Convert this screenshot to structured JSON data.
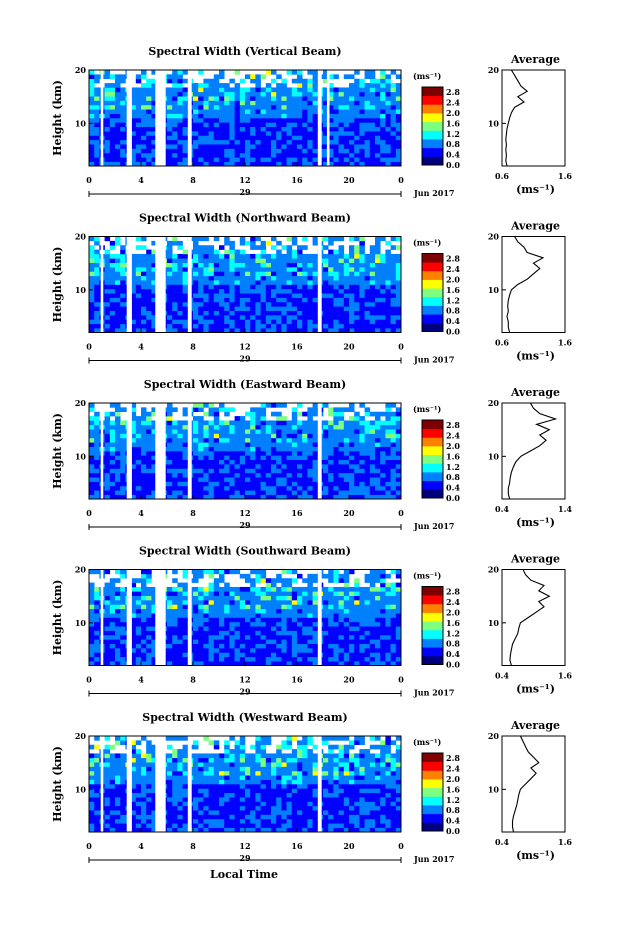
{
  "figure": {
    "xaxis_label": "Local Time",
    "date_label": "Jun 2017",
    "colorbar_unit": "(ms⁻¹)",
    "colorbar_ticks": [
      "0.0",
      "0.4",
      "0.8",
      "1.2",
      "1.6",
      "2.0",
      "2.4",
      "2.8"
    ],
    "colormap": [
      "#00007f",
      "#0000ff",
      "#007fff",
      "#00ffff",
      "#7fff7f",
      "#ffff00",
      "#ff7f00",
      "#ff0000",
      "#7f0000"
    ]
  },
  "chart_data": [
    {
      "type": "heatmap",
      "title": "Spectral Width (Vertical Beam)",
      "ylabel": "Height (km)",
      "xlabel": "Local Time",
      "x_ticks": [
        "0",
        "4",
        "8",
        "12",
        "16",
        "20",
        "0"
      ],
      "day_label": "29",
      "y_ticks": [
        "20",
        "10"
      ],
      "xlim": [
        0,
        24
      ],
      "ylim": [
        2,
        20
      ],
      "data_gaps_hours": [
        [
          0.9,
          1.1
        ],
        [
          2.9,
          3.3
        ],
        [
          5.1,
          5.9
        ],
        [
          7.6,
          7.9
        ],
        [
          17.6,
          17.9
        ],
        [
          18.3,
          18.5
        ]
      ],
      "colorbar": {
        "min": 0.0,
        "max": 3.0,
        "ticks": [
          0.0,
          0.4,
          0.8,
          1.2,
          1.6,
          2.0,
          2.4,
          2.8
        ],
        "unit": "(ms⁻¹)"
      },
      "average_profile": {
        "title": "Average",
        "xlabel": "(ms⁻¹)",
        "x_ticks": [
          "0.6",
          "1.6"
        ],
        "xlim": [
          0.6,
          1.6
        ],
        "y_ticks": [
          "20",
          "10"
        ],
        "ylim": [
          2,
          20
        ],
        "points": [
          [
            0.68,
            2
          ],
          [
            0.66,
            3
          ],
          [
            0.67,
            4
          ],
          [
            0.66,
            5
          ],
          [
            0.67,
            6
          ],
          [
            0.66,
            7
          ],
          [
            0.67,
            8
          ],
          [
            0.68,
            9
          ],
          [
            0.7,
            10
          ],
          [
            0.72,
            11
          ],
          [
            0.75,
            12
          ],
          [
            0.8,
            13
          ],
          [
            0.95,
            14
          ],
          [
            0.85,
            15
          ],
          [
            1.0,
            16
          ],
          [
            0.9,
            17
          ],
          [
            0.85,
            18
          ],
          [
            0.8,
            19
          ],
          [
            0.75,
            20
          ]
        ]
      }
    },
    {
      "type": "heatmap",
      "title": "Spectral Width (Northward Beam)",
      "ylabel": "Height (km)",
      "xlabel": "Local Time",
      "x_ticks": [
        "0",
        "4",
        "8",
        "12",
        "16",
        "20",
        "0"
      ],
      "day_label": "29",
      "y_ticks": [
        "20",
        "10"
      ],
      "xlim": [
        0,
        24
      ],
      "ylim": [
        2,
        20
      ],
      "data_gaps_hours": [
        [
          0.9,
          1.1
        ],
        [
          2.9,
          3.3
        ],
        [
          5.1,
          5.9
        ],
        [
          7.6,
          7.9
        ],
        [
          17.6,
          17.9
        ]
      ],
      "colorbar": {
        "min": 0.0,
        "max": 3.0,
        "ticks": [
          0.0,
          0.4,
          0.8,
          1.2,
          1.6,
          2.0,
          2.4,
          2.8
        ],
        "unit": "(ms⁻¹)"
      },
      "average_profile": {
        "title": "Average",
        "xlabel": "(ms⁻¹)",
        "x_ticks": [
          "0.6",
          "1.6"
        ],
        "xlim": [
          0.6,
          1.6
        ],
        "y_ticks": [
          "20",
          "10"
        ],
        "ylim": [
          2,
          20
        ],
        "points": [
          [
            0.72,
            2
          ],
          [
            0.7,
            3
          ],
          [
            0.7,
            4
          ],
          [
            0.68,
            5
          ],
          [
            0.7,
            6
          ],
          [
            0.69,
            7
          ],
          [
            0.7,
            8
          ],
          [
            0.72,
            9
          ],
          [
            0.75,
            10
          ],
          [
            0.85,
            11
          ],
          [
            1.0,
            12
          ],
          [
            1.1,
            13
          ],
          [
            1.2,
            14
          ],
          [
            1.1,
            15
          ],
          [
            1.25,
            16
          ],
          [
            1.0,
            17
          ],
          [
            0.95,
            18
          ],
          [
            0.85,
            19
          ],
          [
            0.8,
            20
          ]
        ]
      }
    },
    {
      "type": "heatmap",
      "title": "Spectral Width (Eastward Beam)",
      "ylabel": "Height (km)",
      "xlabel": "Local Time",
      "x_ticks": [
        "0",
        "4",
        "8",
        "12",
        "16",
        "20",
        "0"
      ],
      "day_label": "29",
      "y_ticks": [
        "20",
        "10"
      ],
      "xlim": [
        0,
        24
      ],
      "ylim": [
        2,
        20
      ],
      "data_gaps_hours": [
        [
          0.9,
          1.1
        ],
        [
          2.9,
          3.3
        ],
        [
          5.1,
          5.9
        ],
        [
          7.6,
          7.9
        ],
        [
          17.6,
          17.9
        ]
      ],
      "colorbar": {
        "min": 0.0,
        "max": 3.0,
        "ticks": [
          0.0,
          0.4,
          0.8,
          1.2,
          1.6,
          2.0,
          2.4,
          2.8
        ],
        "unit": "(ms⁻¹)"
      },
      "average_profile": {
        "title": "Average",
        "xlabel": "(ms⁻¹)",
        "x_ticks": [
          "0.4",
          "1.4"
        ],
        "xlim": [
          0.4,
          1.4
        ],
        "y_ticks": [
          "20",
          "10"
        ],
        "ylim": [
          2,
          20
        ],
        "points": [
          [
            0.52,
            2
          ],
          [
            0.5,
            3
          ],
          [
            0.5,
            4
          ],
          [
            0.52,
            5
          ],
          [
            0.53,
            6
          ],
          [
            0.55,
            7
          ],
          [
            0.58,
            8
          ],
          [
            0.62,
            9
          ],
          [
            0.7,
            10
          ],
          [
            0.85,
            11
          ],
          [
            1.0,
            12
          ],
          [
            1.1,
            13
          ],
          [
            1.0,
            14
          ],
          [
            1.15,
            15
          ],
          [
            0.95,
            16
          ],
          [
            1.25,
            17
          ],
          [
            1.0,
            18
          ],
          [
            0.9,
            19
          ],
          [
            0.85,
            20
          ]
        ]
      }
    },
    {
      "type": "heatmap",
      "title": "Spectral Width (Southward Beam)",
      "ylabel": "Height (km)",
      "xlabel": "Local Time",
      "x_ticks": [
        "0",
        "4",
        "8",
        "12",
        "16",
        "20",
        "0"
      ],
      "day_label": "29",
      "y_ticks": [
        "20",
        "10"
      ],
      "xlim": [
        0,
        24
      ],
      "ylim": [
        2,
        20
      ],
      "data_gaps_hours": [
        [
          0.9,
          1.1
        ],
        [
          2.9,
          3.3
        ],
        [
          5.1,
          5.9
        ],
        [
          7.6,
          7.9
        ],
        [
          17.6,
          17.9
        ]
      ],
      "colorbar": {
        "min": 0.0,
        "max": 3.0,
        "ticks": [
          0.0,
          0.4,
          0.8,
          1.2,
          1.6,
          2.0,
          2.4,
          2.8
        ],
        "unit": "(ms⁻¹)"
      },
      "average_profile": {
        "title": "Average",
        "xlabel": "(ms⁻¹)",
        "x_ticks": [
          "0.4",
          "1.6"
        ],
        "xlim": [
          0.4,
          1.6
        ],
        "y_ticks": [
          "20",
          "10"
        ],
        "ylim": [
          2,
          20
        ],
        "points": [
          [
            0.58,
            2
          ],
          [
            0.55,
            3
          ],
          [
            0.56,
            4
          ],
          [
            0.58,
            5
          ],
          [
            0.6,
            6
          ],
          [
            0.65,
            7
          ],
          [
            0.7,
            8
          ],
          [
            0.72,
            9
          ],
          [
            0.75,
            10
          ],
          [
            0.9,
            11
          ],
          [
            1.05,
            12
          ],
          [
            1.2,
            13
          ],
          [
            1.1,
            14
          ],
          [
            1.3,
            15
          ],
          [
            1.1,
            16
          ],
          [
            1.2,
            17
          ],
          [
            0.95,
            18
          ],
          [
            0.85,
            19
          ],
          [
            0.8,
            20
          ]
        ]
      }
    },
    {
      "type": "heatmap",
      "title": "Spectral Width (Westward Beam)",
      "ylabel": "Height (km)",
      "xlabel": "Local Time",
      "x_ticks": [
        "0",
        "4",
        "8",
        "12",
        "16",
        "20",
        "0"
      ],
      "day_label": "29",
      "y_ticks": [
        "20",
        "10"
      ],
      "xlim": [
        0,
        24
      ],
      "ylim": [
        2,
        20
      ],
      "data_gaps_hours": [
        [
          0.9,
          1.1
        ],
        [
          2.9,
          3.3
        ],
        [
          5.1,
          5.9
        ],
        [
          7.6,
          7.9
        ],
        [
          17.6,
          17.9
        ]
      ],
      "colorbar": {
        "min": 0.0,
        "max": 3.0,
        "ticks": [
          0.0,
          0.4,
          0.8,
          1.2,
          1.6,
          2.0,
          2.4,
          2.8
        ],
        "unit": "(ms⁻¹)"
      },
      "average_profile": {
        "title": "Average",
        "xlabel": "(ms⁻¹)",
        "x_ticks": [
          "0.4",
          "1.6"
        ],
        "xlim": [
          0.4,
          1.6
        ],
        "y_ticks": [
          "20",
          "10"
        ],
        "ylim": [
          2,
          20
        ],
        "points": [
          [
            0.62,
            2
          ],
          [
            0.6,
            3
          ],
          [
            0.6,
            4
          ],
          [
            0.62,
            5
          ],
          [
            0.65,
            6
          ],
          [
            0.68,
            7
          ],
          [
            0.7,
            8
          ],
          [
            0.72,
            9
          ],
          [
            0.75,
            10
          ],
          [
            0.85,
            11
          ],
          [
            0.95,
            12
          ],
          [
            1.05,
            13
          ],
          [
            0.95,
            14
          ],
          [
            1.1,
            15
          ],
          [
            1.0,
            16
          ],
          [
            0.9,
            17
          ],
          [
            0.85,
            18
          ],
          [
            0.8,
            19
          ],
          [
            0.75,
            20
          ]
        ]
      }
    }
  ]
}
